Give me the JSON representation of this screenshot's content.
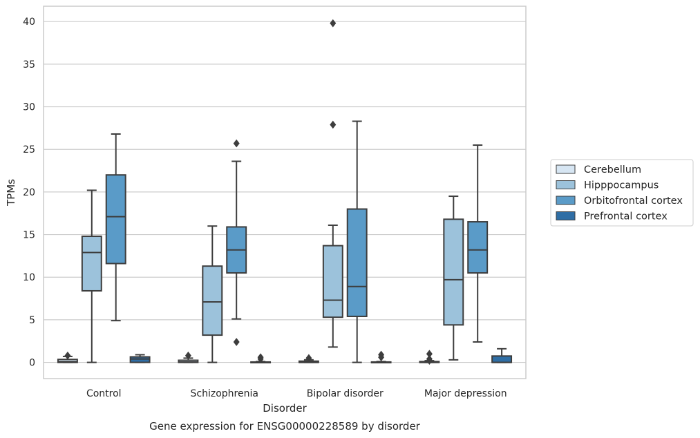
{
  "caption": "Gene expression for ENSG00000228589 by disorder",
  "chart_data": {
    "type": "box",
    "title": "",
    "xlabel": "Disorder",
    "ylabel": "TPMs",
    "ylim": [
      -1.9,
      41.8
    ],
    "yticks": [
      0,
      5,
      10,
      15,
      20,
      25,
      30,
      35,
      40
    ],
    "grid": "horizontal",
    "legend_position": "right",
    "categories": [
      "Control",
      "Schizophrenia",
      "Bipolar disorder",
      "Major depression"
    ],
    "series": [
      {
        "name": "Cerebellum",
        "color": "#d7e6f3",
        "boxes": [
          {
            "whislo": 0,
            "q1": 0,
            "med": 0.1,
            "q3": 0.35,
            "whishi": 0.7,
            "fliers": [
              0.8
            ]
          },
          {
            "whislo": 0,
            "q1": 0,
            "med": 0.05,
            "q3": 0.25,
            "whishi": 0.5,
            "fliers": [
              0.8
            ]
          },
          {
            "whislo": 0,
            "q1": 0,
            "med": 0,
            "q3": 0.15,
            "whishi": 0.3,
            "fliers": [
              0.5
            ]
          },
          {
            "whislo": 0,
            "q1": 0,
            "med": 0,
            "q3": 0.1,
            "whishi": 0.2,
            "fliers": [
              1.0,
              0.4,
              0.2
            ]
          }
        ]
      },
      {
        "name": "Hipppocampus",
        "color": "#9cc2db",
        "boxes": [
          {
            "whislo": 0,
            "q1": 8.4,
            "med": 12.9,
            "q3": 14.8,
            "whishi": 20.2,
            "fliers": []
          },
          {
            "whislo": 0,
            "q1": 3.2,
            "med": 7.1,
            "q3": 11.3,
            "whishi": 16.0,
            "fliers": []
          },
          {
            "whislo": 1.8,
            "q1": 5.3,
            "med": 7.3,
            "q3": 13.7,
            "whishi": 16.1,
            "fliers": [
              27.9,
              39.8
            ]
          },
          {
            "whislo": 0.3,
            "q1": 4.4,
            "med": 9.7,
            "q3": 16.8,
            "whishi": 19.5,
            "fliers": []
          }
        ]
      },
      {
        "name": "Orbitofrontal cortex",
        "color": "#5a9bc8",
        "boxes": [
          {
            "whislo": 4.9,
            "q1": 11.6,
            "med": 17.1,
            "q3": 22.0,
            "whishi": 26.8,
            "fliers": []
          },
          {
            "whislo": 5.1,
            "q1": 10.5,
            "med": 13.2,
            "q3": 15.9,
            "whishi": 23.6,
            "fliers": [
              2.4,
              25.7
            ]
          },
          {
            "whislo": 0,
            "q1": 5.4,
            "med": 8.9,
            "q3": 18.0,
            "whishi": 28.3,
            "fliers": []
          },
          {
            "whislo": 2.4,
            "q1": 10.5,
            "med": 13.2,
            "q3": 16.5,
            "whishi": 25.5,
            "fliers": []
          }
        ]
      },
      {
        "name": "Prefrontal cortex",
        "color": "#2f6ea5",
        "boxes": [
          {
            "whislo": 0,
            "q1": 0,
            "med": 0.4,
            "q3": 0.65,
            "whishi": 0.9,
            "fliers": []
          },
          {
            "whislo": 0,
            "q1": 0,
            "med": 0,
            "q3": 0.05,
            "whishi": 0.1,
            "fliers": [
              0.6,
              0.4
            ]
          },
          {
            "whislo": 0,
            "q1": 0,
            "med": 0,
            "q3": 0.05,
            "whishi": 0.1,
            "fliers": [
              0.9,
              0.6
            ]
          },
          {
            "whislo": 0,
            "q1": 0,
            "med": 0,
            "q3": 0.75,
            "whishi": 1.6,
            "fliers": []
          }
        ]
      }
    ]
  }
}
